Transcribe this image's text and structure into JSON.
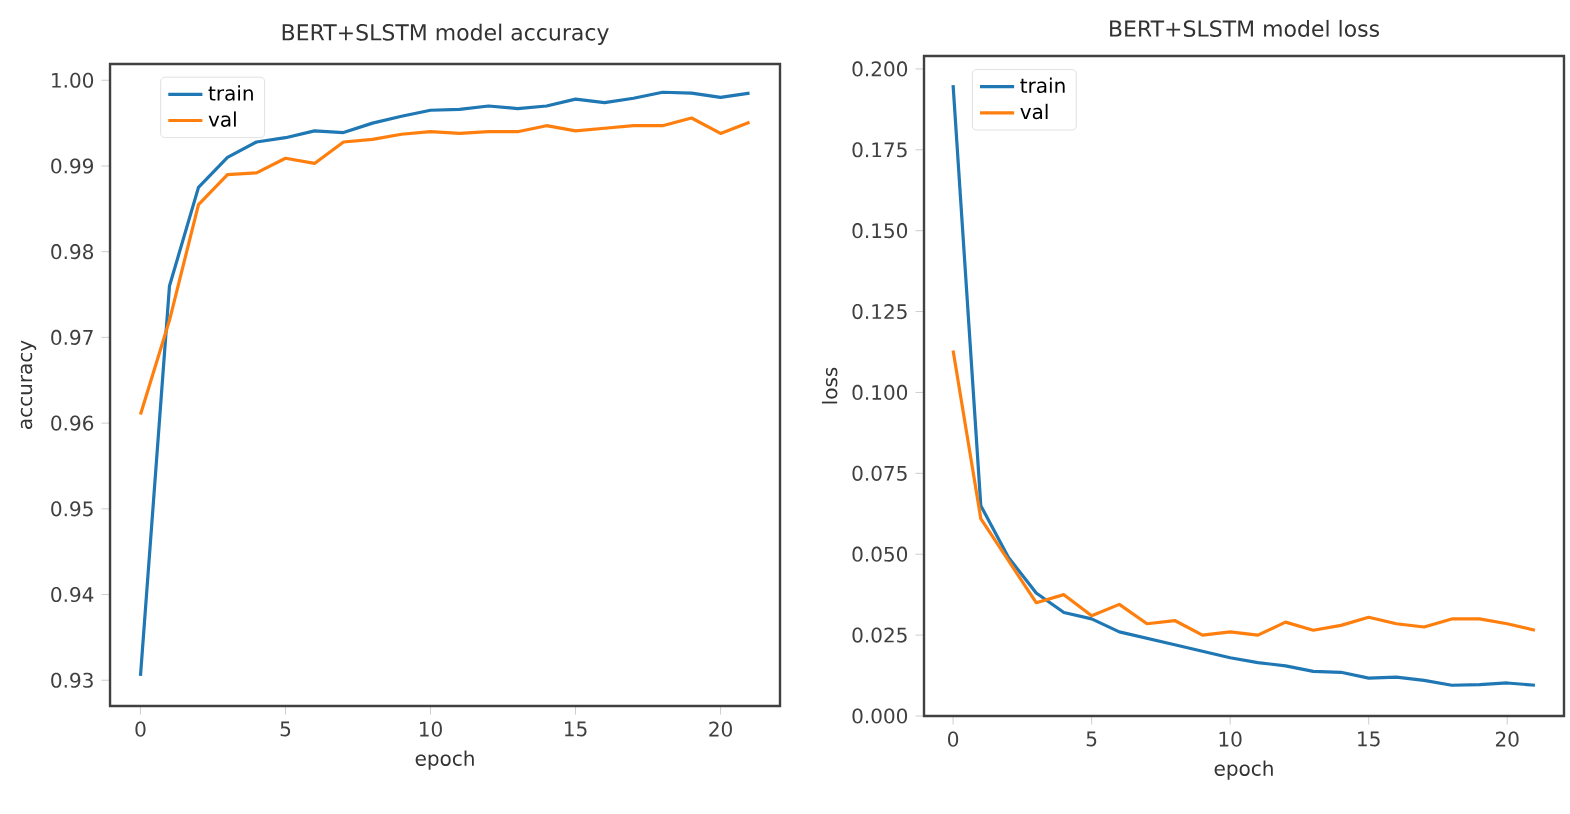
{
  "chart_data": [
    {
      "type": "line",
      "title": "BERT+SLSTM model accuracy",
      "xlabel": "epoch",
      "ylabel": "accuracy",
      "x": [
        0,
        1,
        2,
        3,
        4,
        5,
        6,
        7,
        8,
        9,
        10,
        11,
        12,
        13,
        14,
        15,
        16,
        17,
        18,
        19,
        20,
        21
      ],
      "series": [
        {
          "name": "train",
          "color": "#1f77b4",
          "values": [
            0.9305,
            0.976,
            0.9875,
            0.991,
            0.9928,
            0.9933,
            0.9941,
            0.9939,
            0.995,
            0.9958,
            0.9965,
            0.9966,
            0.997,
            0.9967,
            0.997,
            0.9978,
            0.9974,
            0.9979,
            0.9986,
            0.9985,
            0.998,
            0.9985
          ]
        },
        {
          "name": "val",
          "color": "#ff7f0e",
          "values": [
            0.961,
            0.972,
            0.9855,
            0.989,
            0.9892,
            0.9909,
            0.9903,
            0.9928,
            0.9931,
            0.9937,
            0.994,
            0.9938,
            0.994,
            0.994,
            0.9947,
            0.9941,
            0.9944,
            0.9947,
            0.9947,
            0.9956,
            0.9938,
            0.9951
          ]
        }
      ],
      "xlim": [
        -1.05,
        22.05
      ],
      "ylim": [
        0.927,
        1.0019
      ],
      "xticks": [
        0,
        5,
        10,
        15,
        20
      ],
      "yticks": [
        0.93,
        0.94,
        0.95,
        0.96,
        0.97,
        0.98,
        0.99,
        {
          "value": 1.0,
          "label": "1.00"
        }
      ],
      "grid": false,
      "legend": "top left",
      "marker": "none",
      "line_style": "solid"
    },
    {
      "type": "line",
      "title": "BERT+SLSTM model loss",
      "xlabel": "epoch",
      "ylabel": "loss",
      "x": [
        0,
        1,
        2,
        3,
        4,
        5,
        6,
        7,
        8,
        9,
        10,
        11,
        12,
        13,
        14,
        15,
        16,
        17,
        18,
        19,
        20,
        21
      ],
      "series": [
        {
          "name": "train",
          "color": "#1f77b4",
          "values": [
            0.195,
            0.065,
            0.049,
            0.038,
            0.032,
            0.03,
            0.026,
            0.024,
            0.022,
            0.02,
            0.018,
            0.0165,
            0.0155,
            0.0138,
            0.0135,
            0.0117,
            0.012,
            0.011,
            0.0095,
            0.0097,
            0.0102,
            0.0095
          ]
        },
        {
          "name": "val",
          "color": "#ff7f0e",
          "values": [
            0.113,
            0.061,
            0.048,
            0.035,
            0.0375,
            0.031,
            0.0345,
            0.0285,
            0.0295,
            0.025,
            0.026,
            0.025,
            0.029,
            0.0265,
            0.028,
            0.0305,
            0.0285,
            0.0275,
            0.03,
            0.03,
            0.0285,
            0.0265
          ]
        }
      ],
      "xlim": [
        -1.05,
        22.05
      ],
      "ylim": [
        0,
        0.204
      ],
      "xticks": [
        0,
        5,
        10,
        15,
        20
      ],
      "yticks": [
        {
          "value": 0.0,
          "label": "0.000"
        },
        0.025,
        {
          "value": 0.05,
          "label": "0.050"
        },
        0.075,
        {
          "value": 0.1,
          "label": "0.100"
        },
        0.125,
        {
          "value": 0.15,
          "label": "0.150"
        },
        0.175,
        {
          "value": 0.2,
          "label": "0.200"
        }
      ],
      "grid": false,
      "legend": "top left",
      "marker": "none",
      "line_style": "solid"
    }
  ]
}
